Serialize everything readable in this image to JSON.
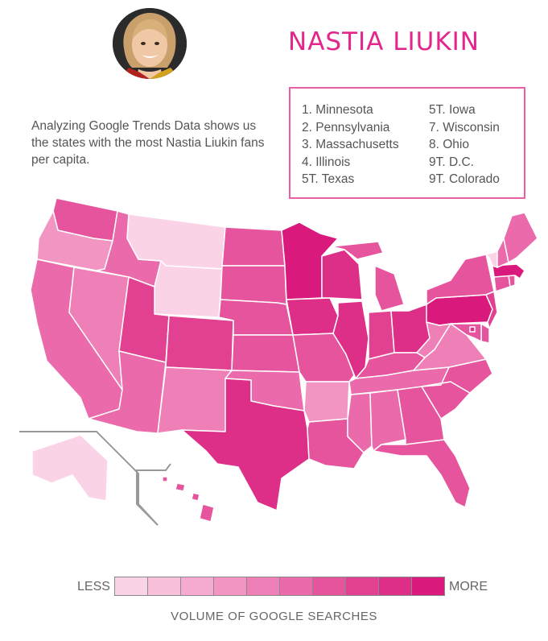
{
  "title": "NASTIA LIUKIN",
  "description": "Analyzing Google Trends Data shows us the states with the most Nastia Liukin fans per capita.",
  "ranking": [
    "1. Minnesota",
    "2. Pennsylvania",
    "3. Massachusetts",
    "4. Illinois",
    "5T. Texas",
    "5T. Iowa",
    "7. Wisconsin",
    "8. Ohio",
    "9T. D.C.",
    "9T. Colorado"
  ],
  "legend": {
    "less_label": "LESS",
    "more_label": "MORE",
    "caption": "VOLUME OF GOOGLE SEARCHES",
    "levels": 10
  },
  "colors": {
    "accent": "#e3268c",
    "scale": [
      "#fbd3e6",
      "#f8bfda",
      "#f6aacf",
      "#f295c3",
      "#ee7fb7",
      "#ea6aab",
      "#e6549e",
      "#e24192",
      "#de2f88",
      "#d9197c"
    ]
  },
  "state_levels": {
    "WA": 6,
    "OR": 3,
    "CA": 5,
    "NV": 4,
    "ID": 5,
    "MT": 0,
    "WY": 0,
    "UT": 7,
    "AZ": 5,
    "CO": 7,
    "NM": 4,
    "ND": 6,
    "SD": 6,
    "NE": 6,
    "KS": 6,
    "OK": 5,
    "TX": 8,
    "MN": 9,
    "IA": 8,
    "MO": 6,
    "AR": 3,
    "LA": 6,
    "WI": 8,
    "IL": 8,
    "MI": 6,
    "IN": 7,
    "OH": 8,
    "KY": 6,
    "TN": 5,
    "MS": 5,
    "AL": 5,
    "GA": 6,
    "FL": 6,
    "SC": 6,
    "NC": 6,
    "VA": 4,
    "WV": 4,
    "PA": 9,
    "NY": 6,
    "VT": 0,
    "NH": 5,
    "ME": 5,
    "MA": 9,
    "RI": 6,
    "CT": 6,
    "NJ": 7,
    "DE": 6,
    "MD": 6,
    "DC": 8,
    "AK": 0,
    "HI": 6
  }
}
